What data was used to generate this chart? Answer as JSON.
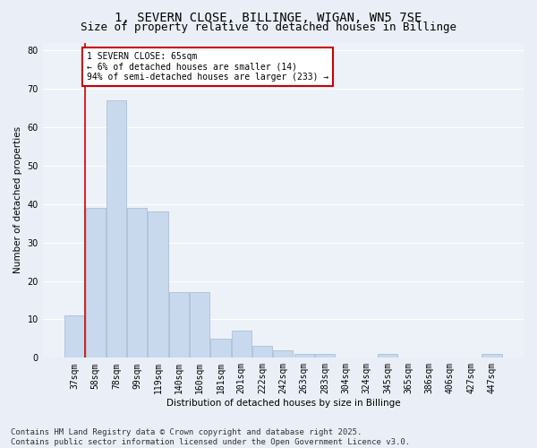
{
  "title": "1, SEVERN CLOSE, BILLINGE, WIGAN, WN5 7SE",
  "subtitle": "Size of property relative to detached houses in Billinge",
  "xlabel": "Distribution of detached houses by size in Billinge",
  "ylabel": "Number of detached properties",
  "categories": [
    "37sqm",
    "58sqm",
    "78sqm",
    "99sqm",
    "119sqm",
    "140sqm",
    "160sqm",
    "181sqm",
    "201sqm",
    "222sqm",
    "242sqm",
    "263sqm",
    "283sqm",
    "304sqm",
    "324sqm",
    "345sqm",
    "365sqm",
    "386sqm",
    "406sqm",
    "427sqm",
    "447sqm"
  ],
  "values": [
    11,
    39,
    67,
    39,
    38,
    17,
    17,
    5,
    7,
    3,
    2,
    1,
    1,
    0,
    0,
    1,
    0,
    0,
    0,
    0,
    1
  ],
  "bar_color": "#c9d9ed",
  "bar_edge_color": "#a8c0d8",
  "vline_x": 0.5,
  "vline_color": "#cc0000",
  "annotation_text": "1 SEVERN CLOSE: 65sqm\n← 6% of detached houses are smaller (14)\n94% of semi-detached houses are larger (233) →",
  "annotation_box_color": "#ffffff",
  "annotation_box_edge_color": "#cc0000",
  "ylim": [
    0,
    82
  ],
  "yticks": [
    0,
    10,
    20,
    30,
    40,
    50,
    60,
    70,
    80
  ],
  "footnote": "Contains HM Land Registry data © Crown copyright and database right 2025.\nContains public sector information licensed under the Open Government Licence v3.0.",
  "bg_color": "#eaeff7",
  "plot_bg_color": "#edf1f8",
  "grid_color": "#ffffff",
  "title_fontsize": 10,
  "subtitle_fontsize": 9,
  "axis_fontsize": 7.5,
  "tick_fontsize": 7,
  "footnote_fontsize": 6.5
}
